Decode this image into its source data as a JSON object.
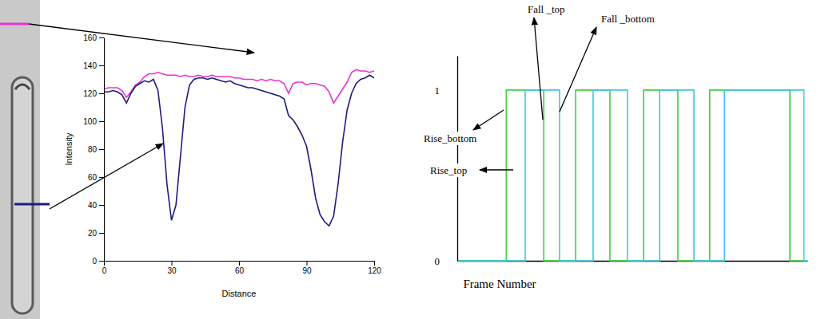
{
  "chart_data": [
    {
      "type": "line",
      "xlabel": "Distance",
      "ylabel": "Intensity",
      "x": [
        0,
        2,
        4,
        6,
        8,
        10,
        12,
        14,
        16,
        18,
        20,
        22,
        24,
        26,
        28,
        30,
        32,
        34,
        36,
        38,
        40,
        42,
        44,
        46,
        48,
        50,
        52,
        54,
        56,
        58,
        60,
        62,
        64,
        66,
        68,
        70,
        72,
        74,
        76,
        78,
        80,
        82,
        84,
        86,
        88,
        90,
        92,
        94,
        96,
        98,
        100,
        102,
        104,
        106,
        108,
        110,
        112,
        114,
        116,
        118,
        120
      ],
      "series": [
        {
          "color": "#e633d4",
          "values": [
            123,
            124,
            124,
            124,
            122,
            117,
            121,
            126,
            128,
            132,
            134,
            134,
            135,
            134,
            133,
            133,
            133,
            132,
            133,
            132,
            132,
            133,
            132,
            132,
            133,
            132,
            132,
            132,
            132,
            131,
            131,
            130,
            130,
            130,
            129,
            130,
            129,
            130,
            129,
            129,
            127,
            120,
            127,
            128,
            128,
            126,
            127,
            127,
            126,
            125,
            121,
            113,
            118,
            123,
            128,
            135,
            137,
            136,
            136,
            135,
            136
          ]
        },
        {
          "color": "#1c1c80",
          "values": [
            121,
            121,
            122,
            121,
            119,
            113,
            120,
            125,
            127,
            129,
            128,
            130,
            122,
            95,
            55,
            29,
            40,
            75,
            110,
            126,
            130,
            131,
            131,
            130,
            131,
            130,
            129,
            128,
            129,
            127,
            126,
            125,
            124,
            124,
            123,
            122,
            121,
            120,
            119,
            118,
            116,
            104,
            101,
            96,
            90,
            82,
            65,
            45,
            33,
            28,
            25,
            32,
            55,
            85,
            108,
            120,
            127,
            130,
            131,
            133,
            131
          ]
        }
      ],
      "xlim": [
        0,
        120
      ],
      "xticks": [
        0,
        30,
        60,
        90,
        120
      ],
      "ylim": [
        0,
        160
      ],
      "yticks": [
        0,
        20,
        40,
        60,
        80,
        100,
        120,
        140,
        160
      ],
      "grid": false
    },
    {
      "type": "line",
      "xlabel": "Frame Number",
      "series": [
        {
          "color": "#3fd13f",
          "line_style": "step",
          "x": [
            0,
            14,
            24.7,
            33.8,
            43.6,
            53.2,
            63,
            72.1,
            95,
            100
          ],
          "values": [
            0,
            1,
            0,
            1,
            0,
            1,
            0,
            1,
            0,
            0
          ]
        },
        {
          "color": "#3cc8e0",
          "line_style": "step",
          "x": [
            0,
            19.4,
            29.2,
            38.8,
            48.6,
            57.8,
            67.6,
            76.3,
            99,
            100
          ],
          "values": [
            0,
            1,
            0,
            1,
            0,
            1,
            0,
            1,
            0,
            0
          ]
        }
      ],
      "xlim": [
        0,
        100
      ],
      "ylim": [
        0,
        1.2
      ],
      "yticks": [
        0,
        1
      ],
      "tick_labels": "y",
      "grid": false,
      "annotations": [
        "Fall _top",
        "Fall _bottom",
        "Rise_bottom",
        "Rise_top"
      ]
    }
  ]
}
